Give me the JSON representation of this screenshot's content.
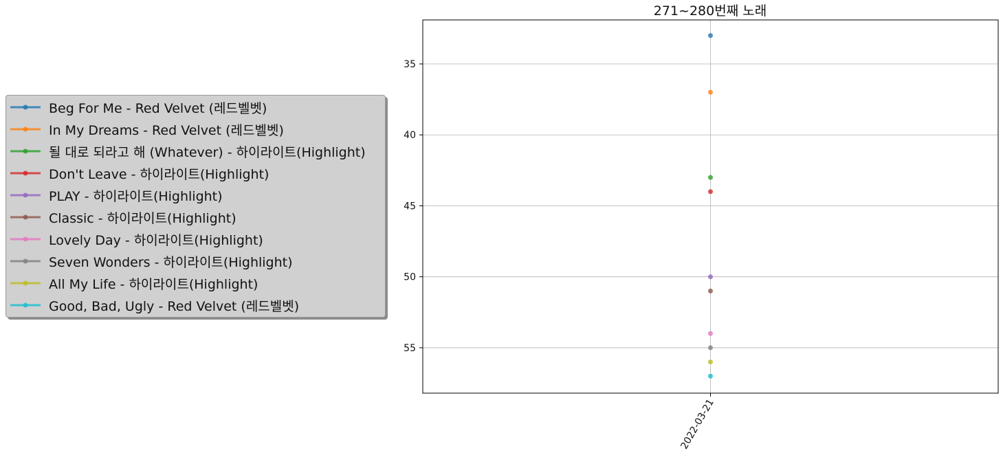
{
  "chart_data": {
    "type": "line",
    "title": "271~280번째 노래",
    "xlabel": "",
    "ylabel": "",
    "x": [
      "2022-03-21"
    ],
    "y_axis": {
      "inverted": true,
      "ylim": [
        58.2,
        31.9
      ],
      "ticks": [
        35,
        40,
        45,
        50,
        55
      ]
    },
    "grid": true,
    "legend_placement": "center-left, outside plot",
    "series": [
      {
        "name": "Beg For Me - Red Velvet (레드벨벳)",
        "values": [
          33
        ],
        "color": "#1f77b4"
      },
      {
        "name": "In My Dreams - Red Velvet (레드벨벳)",
        "values": [
          37
        ],
        "color": "#ff7f0e"
      },
      {
        "name": "될 대로 되라고 해 (Whatever) - 하이라이트(Highlight)",
        "values": [
          43
        ],
        "color": "#2ca02c"
      },
      {
        "name": "Don't Leave - 하이라이트(Highlight)",
        "values": [
          44
        ],
        "color": "#d62728"
      },
      {
        "name": "PLAY - 하이라이트(Highlight)",
        "values": [
          50
        ],
        "color": "#9467bd"
      },
      {
        "name": "Classic - 하이라이트(Highlight)",
        "values": [
          51
        ],
        "color": "#8c564b"
      },
      {
        "name": "Lovely Day - 하이라이트(Highlight)",
        "values": [
          54
        ],
        "color": "#e377c2"
      },
      {
        "name": "Seven Wonders - 하이라이트(Highlight)",
        "values": [
          55
        ],
        "color": "#7f7f7f"
      },
      {
        "name": "All My Life - 하이라이트(Highlight)",
        "values": [
          56
        ],
        "color": "#bcbd22"
      },
      {
        "name": "Good, Bad, Ugly - Red Velvet (레드벨벳)",
        "values": [
          57
        ],
        "color": "#17becf"
      }
    ]
  }
}
